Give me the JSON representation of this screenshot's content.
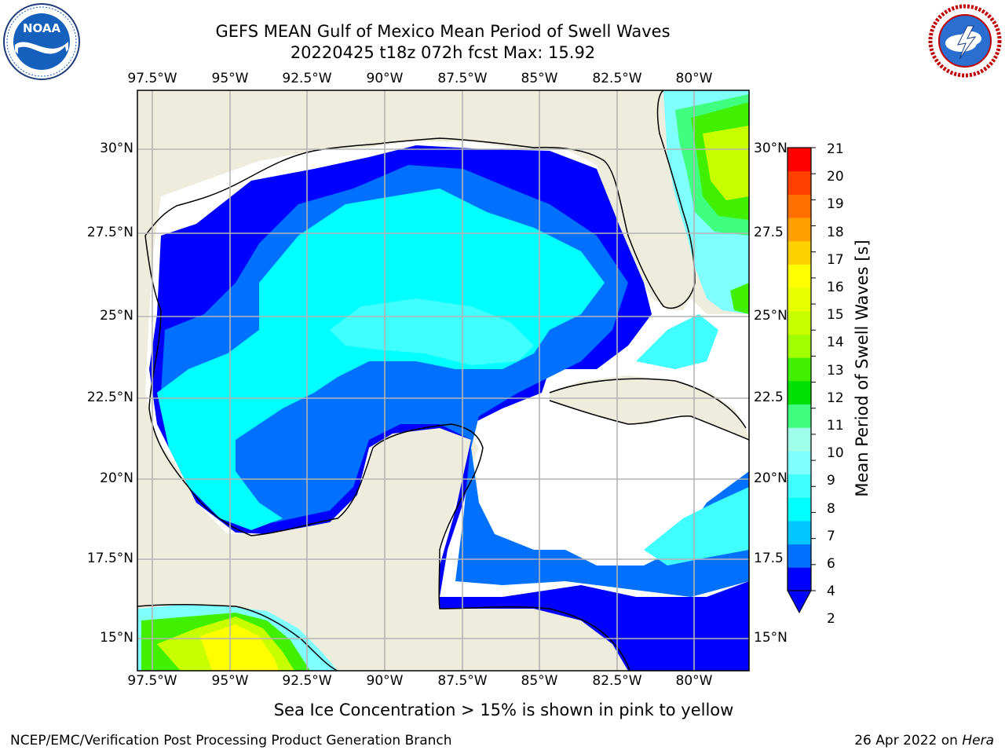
{
  "title": {
    "line1": "GEFS MEAN Gulf of Mexico Mean Period of Swell Waves",
    "line2": "20220425 t18z 072h fcst   Max: 15.92"
  },
  "logos": {
    "left": {
      "name": "noaa-logo",
      "text": "NOAA"
    },
    "right": {
      "name": "nws-logo",
      "ring_text": "NATIONAL WEATHER SERVICE"
    }
  },
  "map": {
    "lon_labels": [
      "97.5°W",
      "95°W",
      "92.5°W",
      "90°W",
      "87.5°W",
      "85°W",
      "82.5°W",
      "80°W"
    ],
    "lat_labels_left": [
      "30°N",
      "27.5°N",
      "25°N",
      "22.5°N",
      "20°N",
      "17.5°N",
      "15°N"
    ],
    "lat_labels_right": [
      "30°N",
      "27.5",
      "25°N",
      "22.5",
      "20°N",
      "17.5",
      "15°N"
    ],
    "colors": {
      "land": "#eeecdc",
      "mask": "#ffffff",
      "grid": "#b4b4b4",
      "coast": "#000000"
    }
  },
  "colorbar": {
    "label": "Mean Period of Swell Waves [s]",
    "ticks": [
      "21",
      "20",
      "19",
      "18",
      "17",
      "16",
      "15",
      "14",
      "13",
      "12",
      "11",
      "10",
      "9",
      "8",
      "7",
      "6",
      "4",
      "2"
    ],
    "colors": [
      "#0000ff",
      "#0070ff",
      "#00c8ff",
      "#00ffff",
      "#40ffff",
      "#80ffff",
      "#a0ffe8",
      "#40ff80",
      "#00e000",
      "#40f000",
      "#a0ff00",
      "#c8ff00",
      "#e8ff00",
      "#ffff00",
      "#ffd000",
      "#ffa000",
      "#ff7000",
      "#ff4000",
      "#ff0000"
    ]
  },
  "footer": {
    "note": "Sea Ice Concentration > 15% is shown in pink to yellow",
    "credit": "NCEP/EMC/Verification Post Processing Product Generation Branch",
    "date": "26 Apr 2022 on",
    "host": "Hera"
  }
}
